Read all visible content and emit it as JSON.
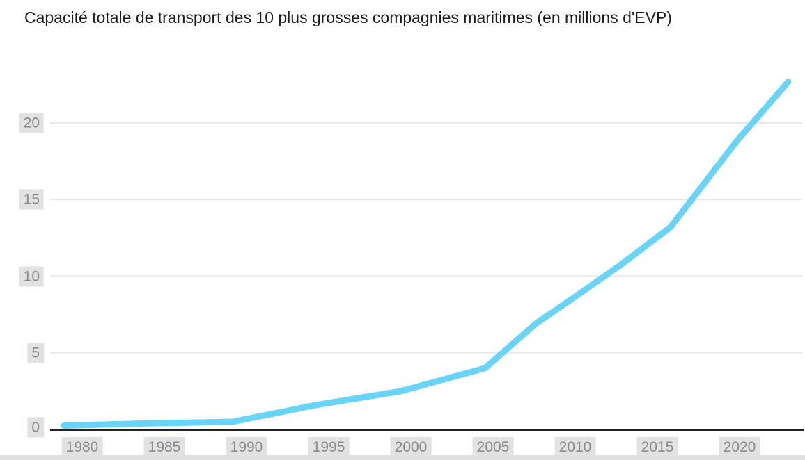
{
  "chart_data": {
    "type": "line",
    "title": "Capacité totale de transport des 10 plus grosses compagnies maritimes (en millions d'EVP)",
    "x": [
      1980,
      1985,
      1990,
      1995,
      2000,
      2005,
      2008,
      2010,
      2013,
      2016,
      2020,
      2023
    ],
    "values": [
      0.25,
      0.4,
      0.5,
      1.6,
      2.5,
      4.0,
      6.9,
      8.4,
      10.7,
      13.2,
      18.9,
      22.7
    ],
    "xlabel": "",
    "ylabel": "",
    "x_tick_labels": [
      "1980",
      "1985",
      "1990",
      "1995",
      "2000",
      "2005",
      "2010",
      "2015",
      "2020"
    ],
    "y_tick_labels": [
      "20",
      "15",
      "10",
      "5",
      "0"
    ],
    "xlim": [
      1980,
      2023
    ],
    "ylim": [
      0,
      23
    ],
    "grid": "horizontal",
    "legend": "none",
    "line_color": "#69d4f7",
    "gridline_color": "#e8e8e8",
    "axis_color": "#222222",
    "tick_label_color": "#8a8a8a",
    "tick_label_bg": "#e2e2e2",
    "title_color": "#1c1c1c"
  }
}
